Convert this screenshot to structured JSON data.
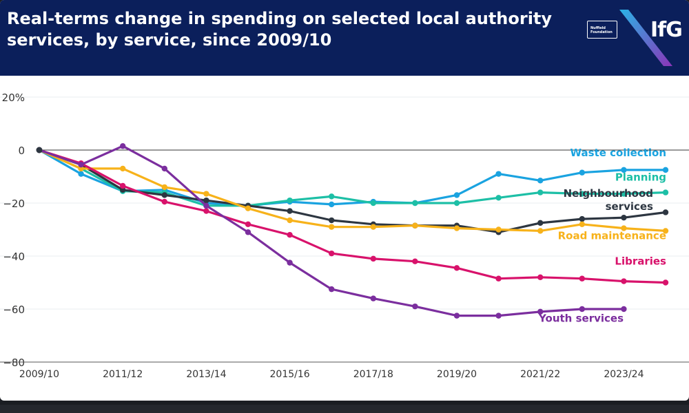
{
  "header": {
    "title": "Real-terms change in spending on selected local authority services, by service, since 2009/10",
    "logo_nuffield": "Nuffield Foundation",
    "logo_ifg": "IfG"
  },
  "colors": {
    "header_bg": "#0b1f5b",
    "waste": "#1aa3e0",
    "planning": "#1dbfa6",
    "neighbourhood": "#2d3641",
    "road": "#f7b21a",
    "libraries": "#d8126b",
    "youth": "#7b2e9e"
  },
  "chart_data": {
    "type": "line",
    "title": "Real-terms change in spending on selected local authority services, by service, since 2009/10",
    "xlabel": "",
    "ylabel": "",
    "ylim": [
      -80,
      20
    ],
    "grid": true,
    "x": [
      "2009/10",
      "2010/11",
      "2011/12",
      "2012/13",
      "2013/14",
      "2014/15",
      "2015/16",
      "2016/17",
      "2017/18",
      "2018/19",
      "2019/20",
      "2020/21",
      "2021/22",
      "2022/23",
      "2023/24",
      "2024/25"
    ],
    "xticks_labeled": [
      "2009/10",
      "2011/12",
      "2013/14",
      "2015/16",
      "2017/18",
      "2019/20",
      "2021/22",
      "2023/24"
    ],
    "yticks": [
      20,
      0,
      -20,
      -40,
      -60,
      -80
    ],
    "ytick_labels": [
      "20%",
      "0",
      "−20",
      "−40",
      "−60",
      "−80"
    ],
    "series": [
      {
        "name": "Waste collection",
        "color_key": "waste",
        "values": [
          0,
          -9,
          -15.5,
          -15,
          -20,
          -21,
          -19.5,
          -20.5,
          -19.5,
          -20,
          -17,
          -9,
          -11.5,
          -8.5,
          -7.5,
          -7.5
        ]
      },
      {
        "name": "Planning",
        "color_key": "planning",
        "values": [
          0,
          -7,
          -15.5,
          -16,
          -21,
          -21,
          -19,
          -17.5,
          -20,
          -20,
          -20,
          -18,
          -16,
          -16.5,
          -16.5,
          -16
        ]
      },
      {
        "name": "Neighbourhood services",
        "color_key": "neighbourhood",
        "values": [
          0,
          -5.5,
          -15,
          -17,
          -19,
          -21,
          -23,
          -26.5,
          -28,
          -28.5,
          -28.5,
          -31,
          -27.5,
          -26,
          -25.5,
          -23.5
        ]
      },
      {
        "name": "Road maintenance",
        "color_key": "road",
        "values": [
          0,
          -7,
          -7,
          -14,
          -16.5,
          -22,
          -26.5,
          -29,
          -29,
          -28.5,
          -29.5,
          -30,
          -30.5,
          -28,
          -29.5,
          -30.5
        ]
      },
      {
        "name": "Libraries",
        "color_key": "libraries",
        "values": [
          0,
          -5,
          -13.5,
          -19.5,
          -23,
          -28,
          -32,
          -39,
          -41,
          -42,
          -44.5,
          -48.5,
          -48,
          -48.5,
          -49.5,
          -50
        ]
      },
      {
        "name": "Youth services",
        "color_key": "youth",
        "values": [
          0,
          -5.5,
          1.5,
          -7,
          -21,
          -31,
          -42.5,
          -52.5,
          -56,
          -59,
          -62.5,
          -62.5,
          -61,
          -60,
          -60,
          null
        ]
      }
    ],
    "annotations": [
      {
        "series": "Waste collection",
        "lines": [
          "Waste collection"
        ],
        "color_key": "waste"
      },
      {
        "series": "Planning",
        "lines": [
          "Planning"
        ],
        "color_key": "planning"
      },
      {
        "series": "Neighbourhood services",
        "lines": [
          "Neighbourhood",
          "services"
        ],
        "color_key": "neighbourhood"
      },
      {
        "series": "Road maintenance",
        "lines": [
          "Road maintenance"
        ],
        "color_key": "road"
      },
      {
        "series": "Libraries",
        "lines": [
          "Libraries"
        ],
        "color_key": "libraries"
      },
      {
        "series": "Youth services",
        "lines": [
          "Youth services"
        ],
        "color_key": "youth"
      }
    ]
  }
}
